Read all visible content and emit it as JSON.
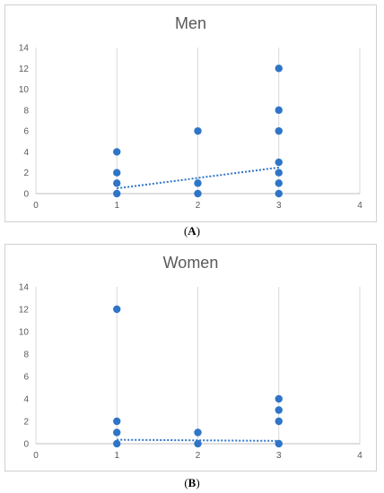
{
  "chart_data": [
    {
      "type": "scatter",
      "title": "Men",
      "caption": "A",
      "xlim": [
        0,
        4
      ],
      "ylim": [
        0,
        14
      ],
      "xticks": [
        "0",
        "1",
        "2",
        "3",
        "4"
      ],
      "yticks": [
        "0",
        "2",
        "4",
        "6",
        "8",
        "10",
        "12",
        "14"
      ],
      "grid": "vertical",
      "points": [
        {
          "x": 1,
          "y": 0
        },
        {
          "x": 1,
          "y": 1
        },
        {
          "x": 1,
          "y": 2
        },
        {
          "x": 1,
          "y": 4
        },
        {
          "x": 2,
          "y": 0
        },
        {
          "x": 2,
          "y": 1
        },
        {
          "x": 2,
          "y": 6
        },
        {
          "x": 3,
          "y": 0
        },
        {
          "x": 3,
          "y": 1
        },
        {
          "x": 3,
          "y": 2
        },
        {
          "x": 3,
          "y": 3
        },
        {
          "x": 3,
          "y": 6
        },
        {
          "x": 3,
          "y": 8
        },
        {
          "x": 3,
          "y": 12
        }
      ],
      "trendline": {
        "x": [
          1,
          3
        ],
        "y": [
          0.5,
          2.5
        ]
      },
      "color": "#2e75c8"
    },
    {
      "type": "scatter",
      "title": "Women",
      "caption": "B",
      "xlim": [
        0,
        4
      ],
      "ylim": [
        0,
        14
      ],
      "xticks": [
        "0",
        "1",
        "2",
        "3",
        "4"
      ],
      "yticks": [
        "0",
        "2",
        "4",
        "6",
        "8",
        "10",
        "12",
        "14"
      ],
      "grid": "vertical",
      "points": [
        {
          "x": 1,
          "y": 0
        },
        {
          "x": 1,
          "y": 1
        },
        {
          "x": 1,
          "y": 2
        },
        {
          "x": 1,
          "y": 12
        },
        {
          "x": 2,
          "y": 0
        },
        {
          "x": 2,
          "y": 1
        },
        {
          "x": 3,
          "y": 0
        },
        {
          "x": 3,
          "y": 2
        },
        {
          "x": 3,
          "y": 3
        },
        {
          "x": 3,
          "y": 4
        }
      ],
      "trendline": {
        "x": [
          1,
          3
        ],
        "y": [
          0.35,
          0.25
        ]
      },
      "color": "#2e75c8"
    }
  ]
}
